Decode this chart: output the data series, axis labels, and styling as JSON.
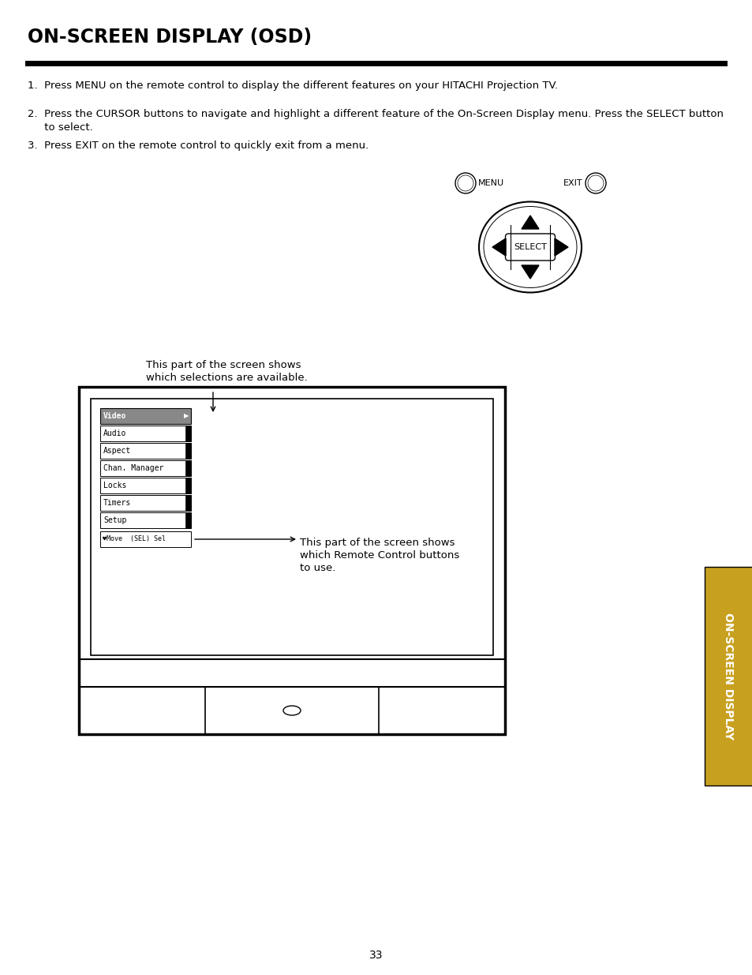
{
  "title": "ON-SCREEN DISPLAY (OSD)",
  "bg_color": "#ffffff",
  "text_color": "#000000",
  "line1": "1.  Press MENU on the remote control to display the different features on your HITACHI Projection TV.",
  "line2a": "2.  Press the CURSOR buttons to navigate and highlight a different feature of the On-Screen Display menu. Press the SELECT button",
  "line2b": "     to select.",
  "line3": "3.  Press EXIT on the remote control to quickly exit from a menu.",
  "menu_items": [
    "Video",
    "Audio",
    "Aspect",
    "Chan. Manager",
    "Locks",
    "Timers",
    "Setup"
  ],
  "status_bar_text": "♥Move  (SEL) Sel",
  "annotation1_line1": "This part of the screen shows",
  "annotation1_line2": "which selections are available.",
  "annotation2_line1": "This part of the screen shows",
  "annotation2_line2": "which Remote Control buttons",
  "annotation2_line3": "to use.",
  "sidebar_text": "ON-SCREEN DISPLAY",
  "page_number": "33",
  "sidebar_bg": "#c8a000",
  "sidebar_text_color": "#ffffff"
}
